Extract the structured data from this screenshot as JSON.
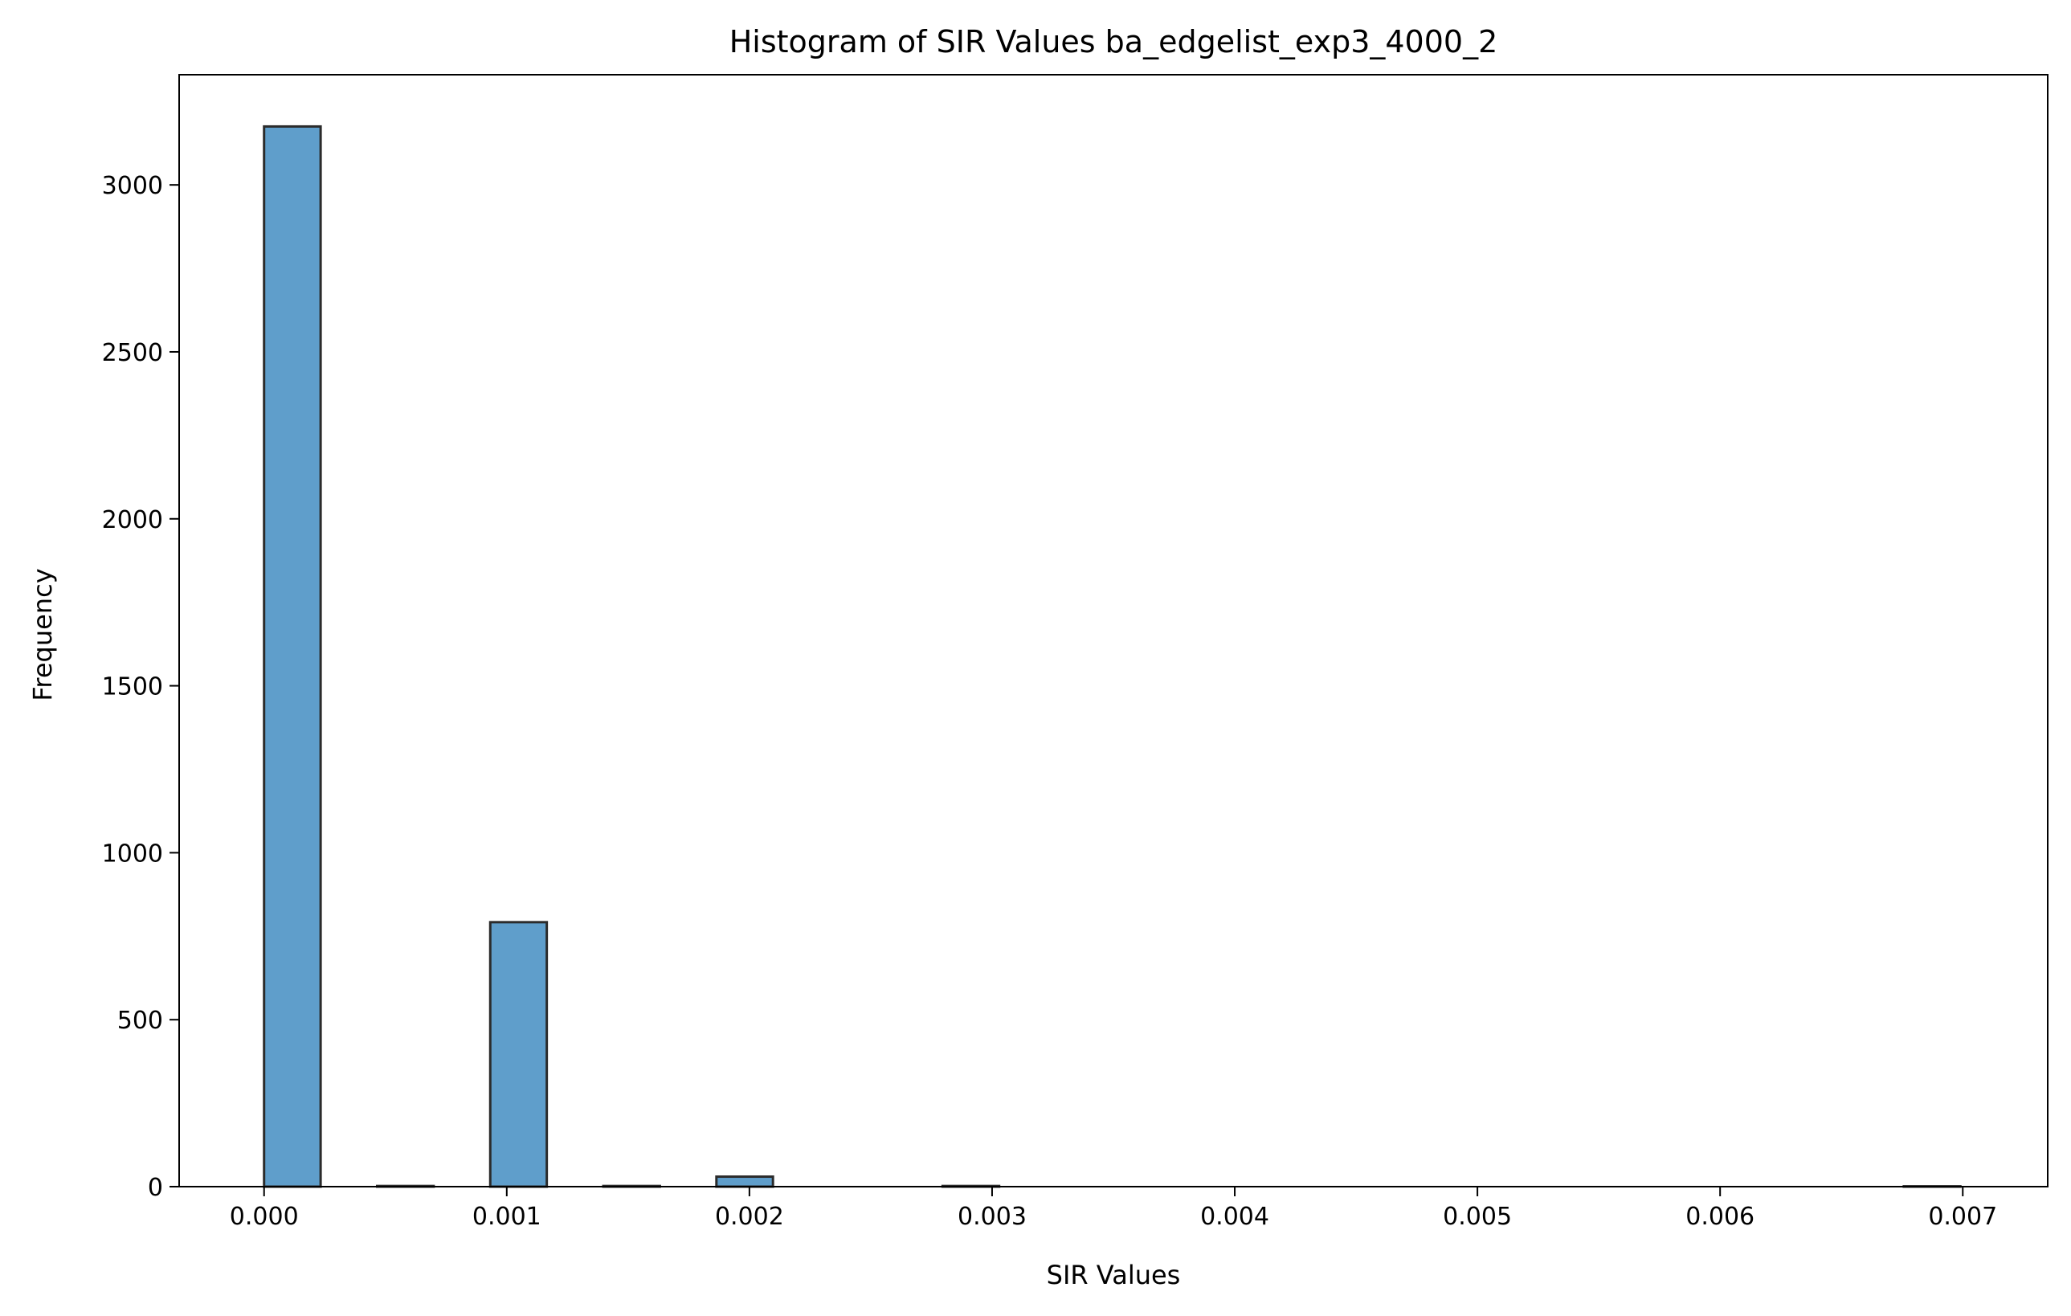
{
  "chart_data": {
    "type": "bar",
    "title": "Histogram of SIR Values ba_edgelist_exp3_4000_2",
    "xlabel": "SIR Values",
    "ylabel": "Frequency",
    "xlim": [
      -0.00035,
      0.00735
    ],
    "ylim": [
      0,
      3330
    ],
    "grid": false,
    "legend": "none",
    "x_ticks": [
      "0.000",
      "0.001",
      "0.002",
      "0.003",
      "0.004",
      "0.005",
      "0.006",
      "0.007"
    ],
    "x_tick_values": [
      0,
      0.001,
      0.002,
      0.003,
      0.004,
      0.005,
      0.006,
      0.007
    ],
    "y_ticks": [
      "0",
      "500",
      "1000",
      "1500",
      "2000",
      "2500",
      "3000"
    ],
    "y_tick_values": [
      0,
      500,
      1000,
      1500,
      2000,
      2500,
      3000
    ],
    "bin_start": 0,
    "bin_width": 0.000233,
    "values": [
      3175,
      0,
      2,
      0,
      792,
      0,
      2,
      0,
      30,
      0,
      0,
      0,
      2,
      0,
      0,
      0,
      0,
      0,
      0,
      0,
      0,
      0,
      0,
      0,
      0,
      0,
      0,
      0,
      0,
      1
    ],
    "bar_color": "#5f9ecb",
    "edge_color": "#2b2b2b"
  }
}
